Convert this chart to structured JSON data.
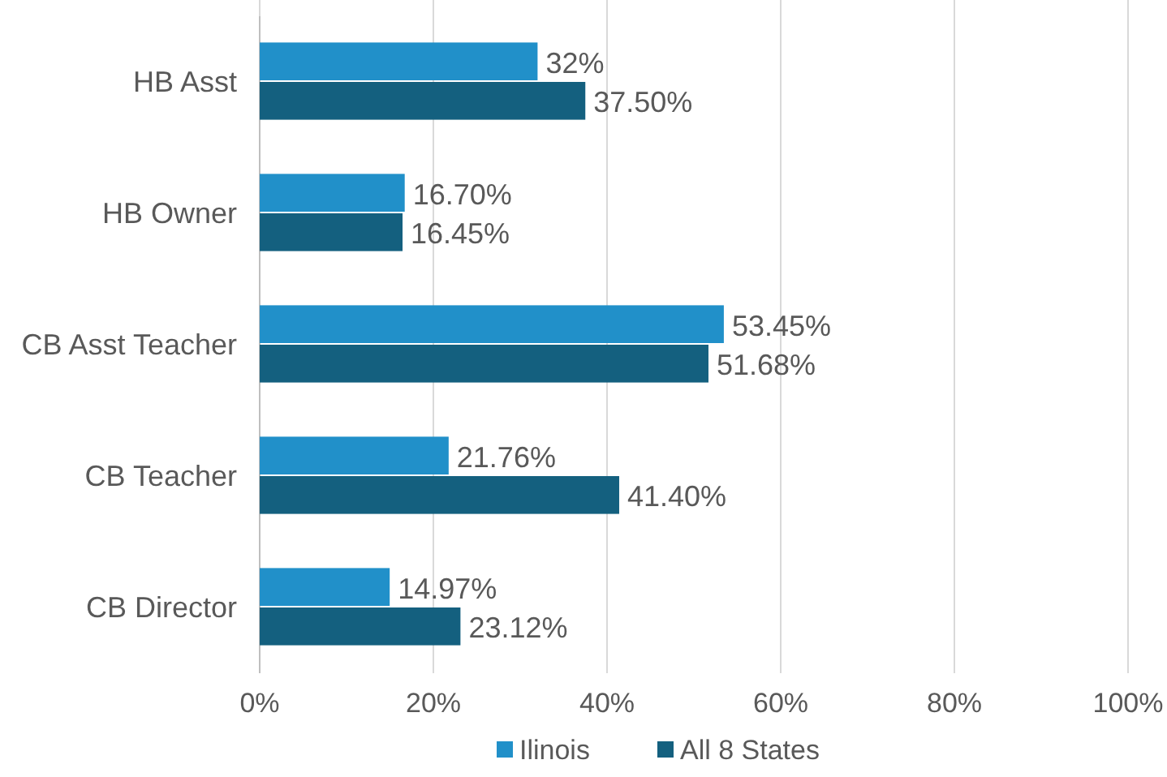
{
  "chart_data": {
    "type": "bar",
    "orientation": "horizontal",
    "categories": [
      "HB Asst",
      "HB Owner",
      "CB Asst Teacher",
      "CB Teacher",
      "CB Director"
    ],
    "series": [
      {
        "name": "Ilinois",
        "color": "#2190c9",
        "values": [
          32,
          16.7,
          53.45,
          21.76,
          14.97
        ],
        "value_labels": [
          "32%",
          "16.70%",
          "53.45%",
          "21.76%",
          "14.97%"
        ]
      },
      {
        "name": "All 8 States",
        "color": "#14607f",
        "values": [
          37.5,
          16.45,
          51.68,
          41.4,
          23.12
        ],
        "value_labels": [
          "37.50%",
          "16.45%",
          "51.68%",
          "41.40%",
          "23.12%"
        ]
      }
    ],
    "xlim": [
      0,
      100
    ],
    "xticks": [
      {
        "value": 0,
        "label": "0%"
      },
      {
        "value": 20,
        "label": "20%"
      },
      {
        "value": 40,
        "label": "40%"
      },
      {
        "value": 60,
        "label": "60%"
      },
      {
        "value": 80,
        "label": "80%"
      },
      {
        "value": 100,
        "label": "100%"
      }
    ],
    "grid": "x",
    "legend": "bottom"
  }
}
